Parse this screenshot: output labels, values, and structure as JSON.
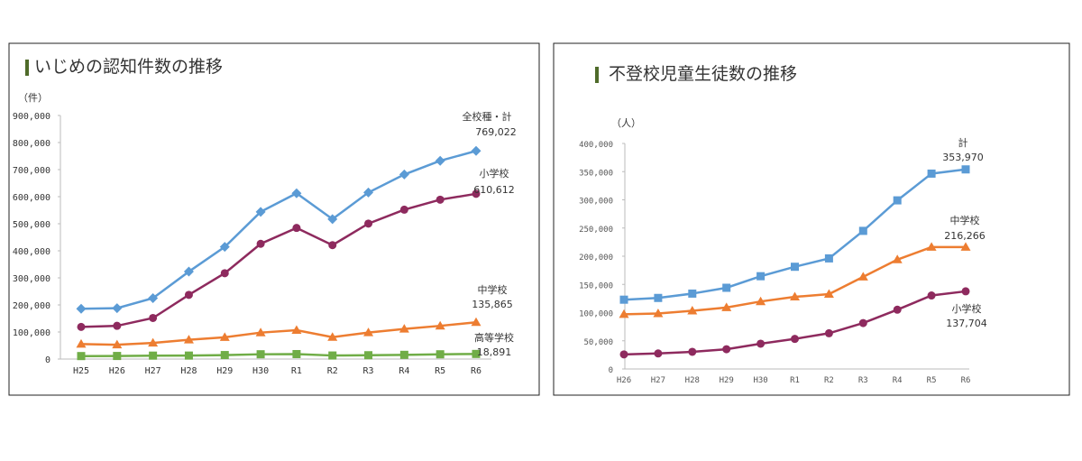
{
  "chart_data": [
    {
      "type": "line",
      "title": "いじめの認知件数の推移",
      "ylabel": "（件）",
      "ylim": [
        0,
        900000
      ],
      "yticks": [
        "0",
        "100,000",
        "200,000",
        "300,000",
        "400,000",
        "500,000",
        "600,000",
        "700,000",
        "800,000",
        "900,000"
      ],
      "categories": [
        "H25",
        "H26",
        "H27",
        "H28",
        "H29",
        "H30",
        "R1",
        "R2",
        "R3",
        "R4",
        "R5",
        "R6"
      ],
      "grid": false,
      "series": [
        {
          "name": "全校種・計",
          "label": "769,022",
          "color": "#5b9bd5",
          "marker": "diamond",
          "values": [
            185803,
            188072,
            225132,
            323143,
            414378,
            543933,
            612496,
            517163,
            615351,
            681948,
            732568,
            769022
          ]
        },
        {
          "name": "小学校",
          "label": "610,612",
          "color": "#8e2a5e",
          "marker": "circle",
          "values": [
            118748,
            122734,
            151692,
            237256,
            317121,
            425844,
            484545,
            420897,
            500562,
            551944,
            588930,
            610612
          ]
        },
        {
          "name": "中学校",
          "label": "135,865",
          "color": "#ed7d31",
          "marker": "triangle",
          "values": [
            55248,
            52971,
            59502,
            71309,
            80424,
            97704,
            106524,
            80877,
            97937,
            111404,
            122703,
            135865
          ]
        },
        {
          "name": "高等学校",
          "label": "18,891",
          "color": "#70ad47",
          "marker": "square",
          "values": [
            11039,
            11404,
            12664,
            12874,
            14789,
            17709,
            18352,
            13126,
            14157,
            15568,
            17611,
            18891
          ]
        }
      ]
    },
    {
      "type": "line",
      "title": "不登校児童生徒数の推移",
      "ylabel": "（人）",
      "ylim": [
        0,
        400000
      ],
      "yticks": [
        "0",
        "50,000",
        "100,000",
        "150,000",
        "200,000",
        "250,000",
        "300,000",
        "350,000",
        "400,000"
      ],
      "categories": [
        "H26",
        "H27",
        "H28",
        "H29",
        "H30",
        "R1",
        "R2",
        "R3",
        "R4",
        "R5",
        "R6"
      ],
      "grid": false,
      "series": [
        {
          "name": "計",
          "label": "353,970",
          "color": "#5b9bd5",
          "marker": "square",
          "values": [
            122897,
            125991,
            133683,
            144031,
            164528,
            181272,
            196127,
            244940,
            299048,
            346482,
            353970
          ]
        },
        {
          "name": "中学校",
          "label": "216,266",
          "color": "#ed7d31",
          "marker": "triangle",
          "values": [
            97033,
            98408,
            103235,
            108999,
            119687,
            127922,
            132777,
            163442,
            193936,
            216112,
            216266
          ]
        },
        {
          "name": "小学校",
          "label": "137,704",
          "color": "#8e2a5e",
          "marker": "circle",
          "values": [
            25864,
            27583,
            30448,
            35032,
            44841,
            53350,
            63350,
            81498,
            105112,
            130370,
            137704
          ]
        }
      ]
    }
  ],
  "colors": {
    "title_bar": "#4f6b2a",
    "border": "#222222",
    "axis": "#bbbbbb"
  }
}
